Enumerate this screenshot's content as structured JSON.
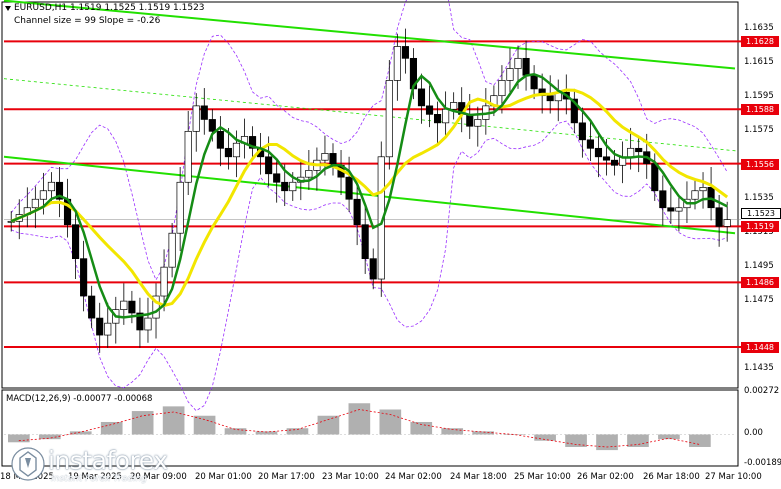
{
  "header": {
    "symbol_line": "EURUSD,H1  1.1519 1.1525 1.1519 1.1523",
    "channel_line": "Channel size = 99 Slope = -0.26"
  },
  "price_axis": {
    "ticks": [
      "1.1635",
      "1.1615",
      "1.1595",
      "1.1575",
      "1.1535",
      "1.1515",
      "1.1495",
      "1.1475",
      "1.1435"
    ],
    "current": "1.1523"
  },
  "levels": [
    {
      "price": "1.1628",
      "color": "#e8000b"
    },
    {
      "price": "1.1588",
      "color": "#e8000b"
    },
    {
      "price": "1.1556",
      "color": "#e8000b"
    },
    {
      "price": "1.1519",
      "color": "#e8000b"
    },
    {
      "price": "1.1486",
      "color": "#e8000b"
    },
    {
      "price": "1.1448",
      "color": "#e8000b"
    }
  ],
  "time_axis": [
    "18 Mar 2025",
    "19 Mar 2025",
    "20 Mar 09:00",
    "20 Mar 01:00",
    "20 Mar 17:00",
    "23 Mar 10:00",
    "24 Mar 02:00",
    "24 Mar 18:00",
    "25 Mar 10:00",
    "26 Mar 02:00",
    "26 Mar 18:00",
    "27 Mar 10:00"
  ],
  "macd": {
    "label": "MACD(12,26,9) -0.00077 -0.00068",
    "ticks": [
      "0.00272",
      "0.00",
      "-0.00189"
    ]
  },
  "watermark": {
    "brand": "instaforex",
    "tagline": "Instant Forex Trading"
  },
  "colors": {
    "candles": "#000000",
    "channel": "#22e000",
    "ma_fast": "#158c15",
    "ma_slow": "#f2e600",
    "bollinger": "#9b30ff",
    "levels": "#e8000b"
  },
  "chart_data": {
    "type": "candlestick",
    "symbol": "EURUSD",
    "timeframe": "H1",
    "ylim": [
      1.1425,
      1.165
    ],
    "close_series": [
      1.1522,
      1.1526,
      1.153,
      1.1535,
      1.154,
      1.1545,
      1.1535,
      1.152,
      1.15,
      1.1478,
      1.1465,
      1.1455,
      1.1462,
      1.147,
      1.1475,
      1.1468,
      1.1458,
      1.1465,
      1.1478,
      1.1495,
      1.1515,
      1.1545,
      1.1575,
      1.159,
      1.1582,
      1.1575,
      1.1565,
      1.156,
      1.1568,
      1.1572,
      1.1565,
      1.156,
      1.155,
      1.1545,
      1.154,
      1.1545,
      1.1548,
      1.1552,
      1.1558,
      1.1562,
      1.1555,
      1.1548,
      1.1535,
      1.152,
      1.15,
      1.1488,
      1.156,
      1.1605,
      1.1625,
      1.1618,
      1.16,
      1.159,
      1.1585,
      1.158,
      1.1588,
      1.1592,
      1.1585,
      1.1578,
      1.1582,
      1.159,
      1.1596,
      1.1605,
      1.1612,
      1.1618,
      1.1608,
      1.16,
      1.1596,
      1.1593,
      1.1598,
      1.1594,
      1.158,
      1.157,
      1.1565,
      1.156,
      1.1558,
      1.1555,
      1.156,
      1.1565,
      1.1563,
      1.1556,
      1.154,
      1.153,
      1.1528,
      1.153,
      1.1535,
      1.154,
      1.1542,
      1.153,
      1.1519,
      1.1523
    ],
    "channel_upper": [
      [
        0,
        1.1652
      ],
      [
        735,
        1.1612
      ]
    ],
    "channel_lower": [
      [
        0,
        1.156
      ],
      [
        735,
        1.1515
      ]
    ],
    "macd_hist": [
      -0.0005,
      -0.0003,
      0.0002,
      0.0008,
      0.0015,
      0.0018,
      0.0012,
      0.0004,
      0.0002,
      0.0004,
      0.0012,
      0.002,
      0.0016,
      0.0008,
      0.0004,
      0.0002,
      0.0,
      -0.0004,
      -0.0008,
      -0.001,
      -0.0008,
      -0.0003,
      -0.0008
    ]
  }
}
